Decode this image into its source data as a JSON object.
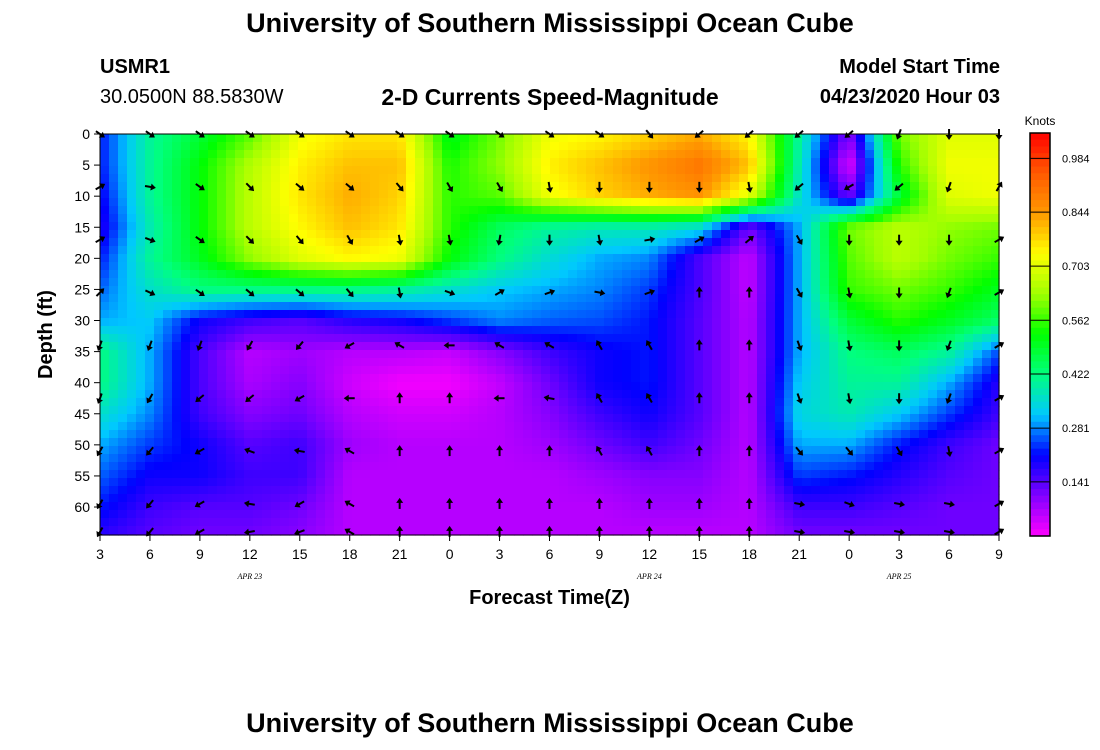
{
  "header": {
    "title_top": "University of Southern Mississippi Ocean Cube",
    "title_bottom": "University of Southern Mississippi Ocean Cube",
    "station_id": "USMR1",
    "station_location": "30.0500N 88.5830W",
    "product_title": "2-D Currents Speed-Magnitude",
    "model_start_label": "Model Start Time",
    "model_start_value": "04/23/2020 Hour 03"
  },
  "chart_data": {
    "type": "heatmap",
    "xlabel": "Forecast Time(Z)",
    "ylabel": "Depth (ft)",
    "x_tick_labels": [
      "3",
      "6",
      "9",
      "12",
      "15",
      "18",
      "21",
      "0",
      "3",
      "6",
      "9",
      "12",
      "15",
      "18",
      "21",
      "0",
      "3",
      "6",
      "9"
    ],
    "date_labels": [
      {
        "label": "APR 23",
        "tick_index": 3
      },
      {
        "label": "APR 24",
        "tick_index": 11
      },
      {
        "label": "APR 25",
        "tick_index": 16
      }
    ],
    "y_ticks": [
      0,
      5,
      10,
      15,
      20,
      25,
      30,
      35,
      40,
      45,
      50,
      55,
      60
    ],
    "y_range": [
      0,
      64.5
    ],
    "y_inverted": true,
    "colorbar": {
      "title": "Knots",
      "labels": [
        "0.984",
        "0.844",
        "0.703",
        "0.562",
        "0.422",
        "0.281",
        "0.141"
      ],
      "range": [
        0,
        1.05
      ],
      "colors": [
        "#ff00ff",
        "#8000ff",
        "#0000ff",
        "#00c8ff",
        "#00ff7f",
        "#00ff00",
        "#a0ff00",
        "#ffff00",
        "#ff9900",
        "#ff5a00",
        "#ff0000"
      ]
    },
    "depths": [
      0,
      5,
      10,
      15,
      20,
      25,
      30,
      35,
      40,
      45,
      50,
      55,
      60,
      64
    ],
    "speed": [
      [
        0.22,
        0.4,
        0.48,
        0.58,
        0.72,
        0.76,
        0.76,
        0.5,
        0.6,
        0.72,
        0.74,
        0.78,
        0.82,
        0.74,
        0.4,
        0.1,
        0.6,
        0.7,
        0.7
      ],
      [
        0.22,
        0.4,
        0.52,
        0.65,
        0.75,
        0.8,
        0.8,
        0.54,
        0.62,
        0.75,
        0.8,
        0.85,
        0.9,
        0.8,
        0.38,
        0.02,
        0.55,
        0.72,
        0.72
      ],
      [
        0.2,
        0.4,
        0.52,
        0.66,
        0.76,
        0.82,
        0.78,
        0.55,
        0.58,
        0.72,
        0.78,
        0.82,
        0.85,
        0.7,
        0.36,
        0.12,
        0.48,
        0.7,
        0.72
      ],
      [
        0.18,
        0.38,
        0.52,
        0.66,
        0.74,
        0.8,
        0.76,
        0.55,
        0.45,
        0.4,
        0.38,
        0.38,
        0.35,
        0.12,
        0.3,
        0.6,
        0.66,
        0.62,
        0.6
      ],
      [
        0.22,
        0.4,
        0.5,
        0.62,
        0.7,
        0.74,
        0.72,
        0.52,
        0.42,
        0.35,
        0.3,
        0.28,
        0.15,
        0.05,
        0.3,
        0.58,
        0.66,
        0.6,
        0.56
      ],
      [
        0.26,
        0.36,
        0.42,
        0.42,
        0.42,
        0.42,
        0.4,
        0.36,
        0.32,
        0.3,
        0.28,
        0.24,
        0.15,
        0.05,
        0.3,
        0.56,
        0.6,
        0.56,
        0.5
      ],
      [
        0.3,
        0.32,
        0.2,
        0.16,
        0.14,
        0.18,
        0.2,
        0.24,
        0.28,
        0.26,
        0.25,
        0.22,
        0.14,
        0.06,
        0.3,
        0.48,
        0.55,
        0.5,
        0.44
      ],
      [
        0.42,
        0.3,
        0.15,
        0.06,
        0.08,
        0.06,
        0.06,
        0.05,
        0.1,
        0.16,
        0.2,
        0.22,
        0.14,
        0.06,
        0.3,
        0.42,
        0.45,
        0.4,
        0.25
      ],
      [
        0.42,
        0.3,
        0.15,
        0.07,
        0.1,
        0.04,
        0.01,
        0.01,
        0.05,
        0.12,
        0.2,
        0.22,
        0.14,
        0.06,
        0.32,
        0.4,
        0.4,
        0.3,
        0.18
      ],
      [
        0.36,
        0.28,
        0.16,
        0.1,
        0.12,
        0.06,
        0.04,
        0.04,
        0.06,
        0.1,
        0.16,
        0.2,
        0.14,
        0.06,
        0.34,
        0.38,
        0.32,
        0.24,
        0.16
      ],
      [
        0.3,
        0.24,
        0.2,
        0.14,
        0.16,
        0.08,
        0.06,
        0.06,
        0.06,
        0.08,
        0.12,
        0.16,
        0.12,
        0.06,
        0.3,
        0.3,
        0.22,
        0.16,
        0.12
      ],
      [
        0.26,
        0.2,
        0.2,
        0.16,
        0.16,
        0.06,
        0.06,
        0.06,
        0.06,
        0.06,
        0.08,
        0.1,
        0.1,
        0.06,
        0.24,
        0.22,
        0.18,
        0.14,
        0.12
      ],
      [
        0.22,
        0.16,
        0.14,
        0.14,
        0.12,
        0.06,
        0.06,
        0.06,
        0.06,
        0.06,
        0.06,
        0.08,
        0.08,
        0.06,
        0.16,
        0.16,
        0.14,
        0.12,
        0.12
      ],
      [
        0.18,
        0.14,
        0.12,
        0.12,
        0.1,
        0.06,
        0.06,
        0.06,
        0.06,
        0.06,
        0.06,
        0.06,
        0.06,
        0.06,
        0.12,
        0.12,
        0.12,
        0.12,
        0.12
      ]
    ],
    "arrows": {
      "depths": [
        0,
        8.5,
        17,
        25.5,
        34,
        42.5,
        51,
        59.5,
        64
      ],
      "directions_deg": [
        [
          125,
          125,
          125,
          125,
          125,
          125,
          125,
          125,
          125,
          125,
          125,
          140,
          230,
          230,
          230,
          230,
          200,
          180,
          180
        ],
        [
          60,
          100,
          125,
          135,
          130,
          130,
          140,
          150,
          150,
          170,
          180,
          180,
          180,
          170,
          230,
          240,
          230,
          200,
          30
        ],
        [
          60,
          110,
          125,
          135,
          140,
          150,
          170,
          170,
          190,
          180,
          170,
          80,
          60,
          50,
          150,
          180,
          180,
          180,
          60
        ],
        [
          45,
          115,
          125,
          130,
          130,
          140,
          170,
          110,
          60,
          70,
          100,
          70,
          0,
          0,
          150,
          170,
          180,
          200,
          60
        ],
        [
          200,
          200,
          200,
          210,
          220,
          240,
          300,
          270,
          300,
          300,
          330,
          330,
          0,
          0,
          160,
          170,
          180,
          200,
          60
        ],
        [
          200,
          210,
          230,
          230,
          240,
          270,
          0,
          0,
          270,
          280,
          330,
          330,
          0,
          0,
          160,
          170,
          180,
          200,
          60
        ],
        [
          210,
          220,
          240,
          290,
          280,
          300,
          0,
          0,
          0,
          0,
          330,
          330,
          0,
          0,
          140,
          140,
          150,
          170,
          60
        ],
        [
          210,
          220,
          240,
          280,
          240,
          300,
          0,
          0,
          0,
          0,
          0,
          0,
          0,
          0,
          100,
          110,
          100,
          100,
          60
        ],
        [
          210,
          220,
          240,
          260,
          250,
          300,
          0,
          0,
          0,
          0,
          0,
          0,
          0,
          0,
          100,
          100,
          100,
          100,
          60
        ]
      ]
    }
  }
}
